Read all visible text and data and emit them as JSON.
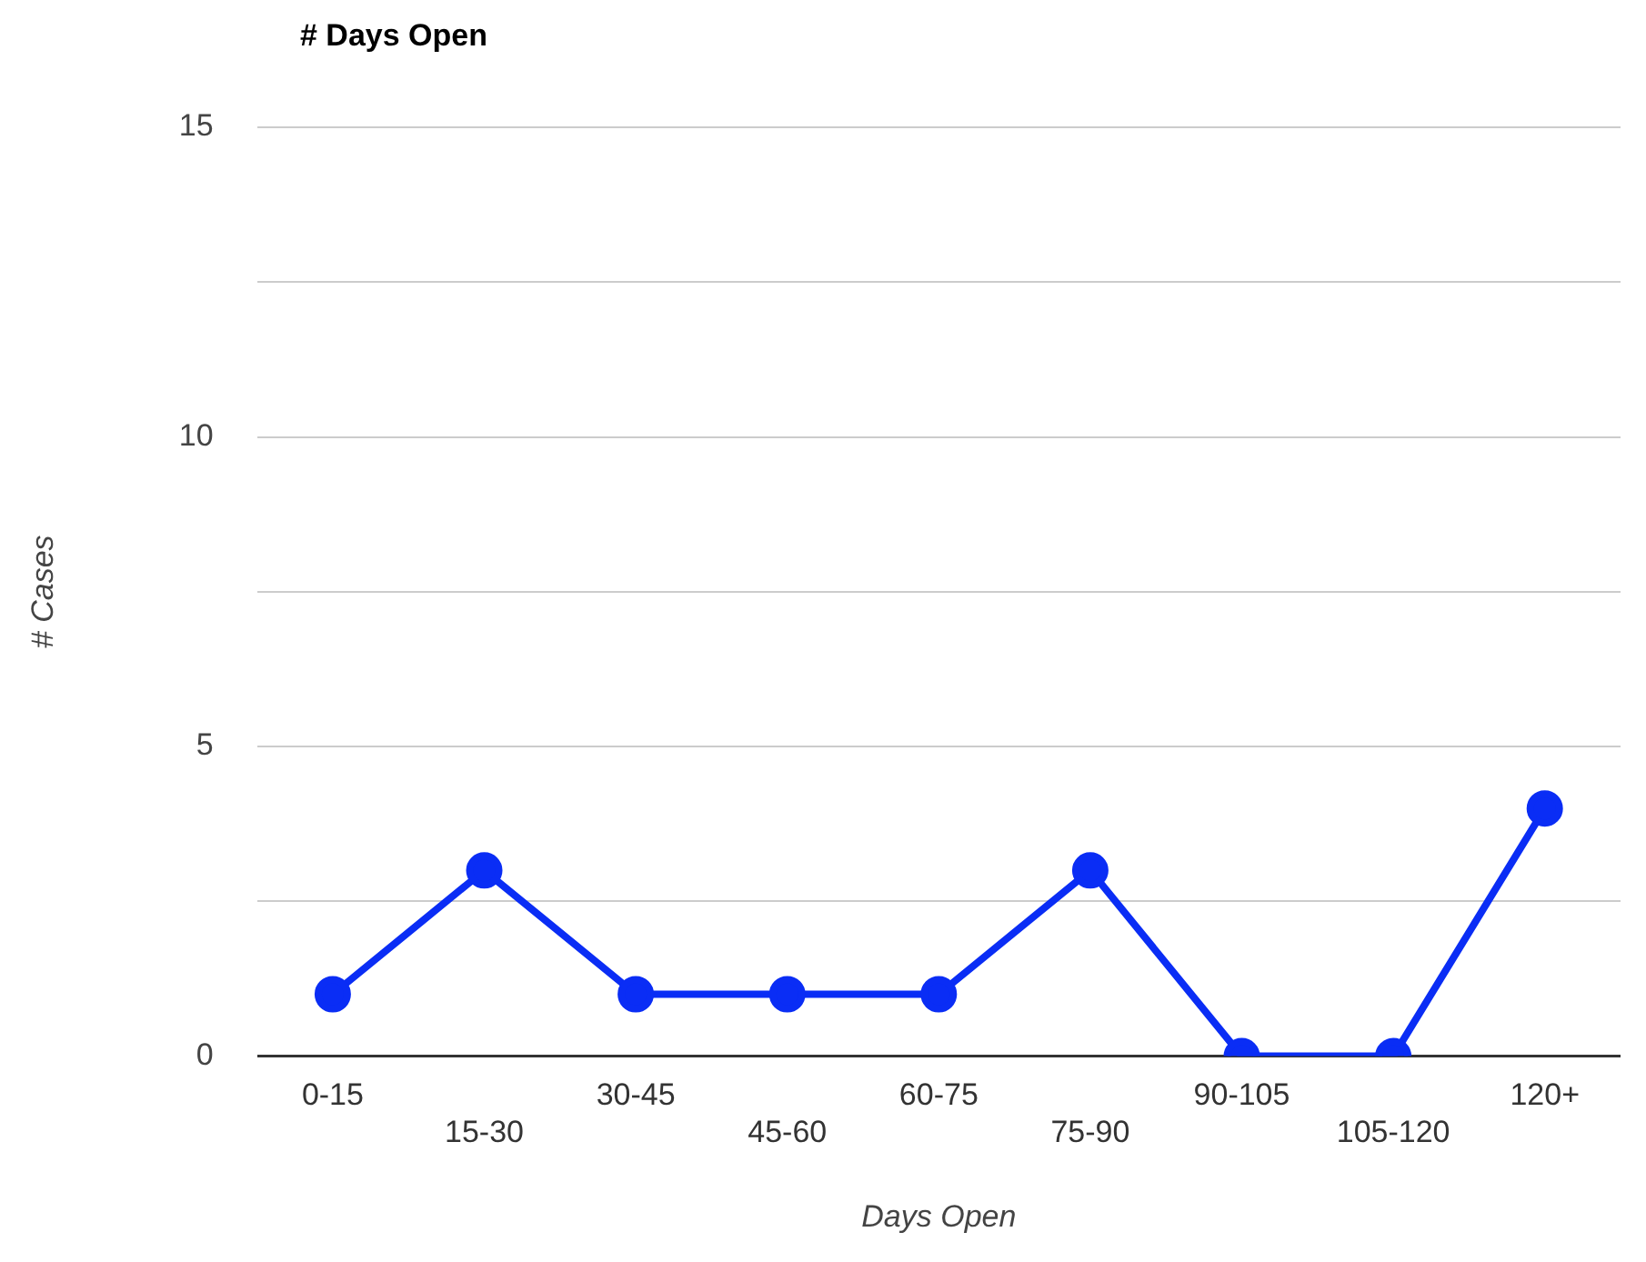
{
  "chart_data": {
    "type": "line",
    "title": "# Days Open",
    "xlabel": "Days Open",
    "ylabel": "# Cases",
    "categories": [
      "0-15",
      "15-30",
      "30-45",
      "45-60",
      "60-75",
      "75-90",
      "90-105",
      "105-120",
      "120+"
    ],
    "series": [
      {
        "color": "#0a2df5",
        "values": [
          1,
          3,
          1,
          1,
          1,
          3,
          0,
          0,
          4
        ]
      }
    ],
    "ylim": [
      0,
      15
    ],
    "yticks": [
      0,
      {
        "value": 2.5,
        "label": null
      },
      5,
      {
        "value": 7.5,
        "label": null
      },
      10,
      {
        "value": 12.5,
        "label": null
      },
      15
    ],
    "grid": "y",
    "legend": false,
    "marker": "circle",
    "line_style": "solid"
  }
}
